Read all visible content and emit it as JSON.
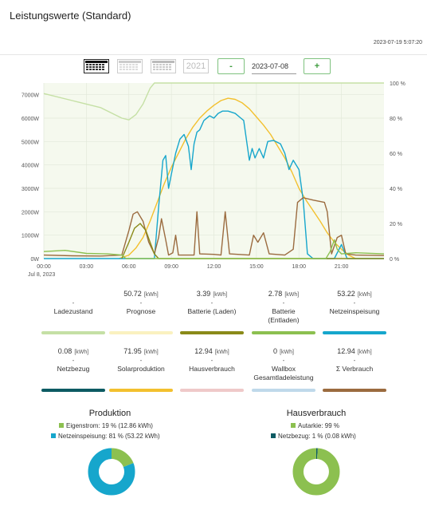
{
  "header": {
    "title": "Leistungswerte (Standard)",
    "timestamp": "2023-07-19 5:07:20"
  },
  "toolbar": {
    "year_label": "2021",
    "prev_label": "-",
    "next_label": "+",
    "date_value": "2023-07-08"
  },
  "colors": {
    "ladezustand": "#c5e0a5",
    "prognose": "#faf1c0",
    "batterie_laden": "#8a8a18",
    "batterie_entladen": "#8cc050",
    "netzeinspeisung": "#16a6cc",
    "netzbezug": "#0d5b63",
    "solarproduktion": "#f3c02e",
    "hausverbrauch": "#efc9c9",
    "wallbox": "#bfd9ea",
    "verbrauch": "#9b6b3f",
    "plot_bg": "#f5f9ee",
    "donut_light_green": "#8cc050",
    "donut_blue": "#16a6cc",
    "donut_teal": "#0d5b63"
  },
  "stats_row1": [
    {
      "key": "ladezustand",
      "value": "",
      "unit": "",
      "label": "Ladezustand",
      "label2": ""
    },
    {
      "key": "prognose",
      "value": "50.72",
      "unit": "[kWh]",
      "label": "Prognose",
      "label2": ""
    },
    {
      "key": "batterie_laden",
      "value": "3.39",
      "unit": "[kWh]",
      "label": "Batterie (Laden)",
      "label2": ""
    },
    {
      "key": "batterie_entladen",
      "value": "2.78",
      "unit": "[kWh]",
      "label": "Batterie",
      "label2": "(Entladen)"
    },
    {
      "key": "netzeinspeisung",
      "value": "53.22",
      "unit": "[kWh]",
      "label": "Netzeinspeisung",
      "label2": ""
    }
  ],
  "stats_row2": [
    {
      "key": "netzbezug",
      "value": "0.08",
      "unit": "[kWh]",
      "label": "Netzbezug",
      "label2": ""
    },
    {
      "key": "solarproduktion",
      "value": "71.95",
      "unit": "[kWh]",
      "label": "Solarproduktion",
      "label2": ""
    },
    {
      "key": "hausverbrauch",
      "value": "12.94",
      "unit": "[kWh]",
      "label": "Hausverbrauch",
      "label2": ""
    },
    {
      "key": "wallbox",
      "value": "0",
      "unit": "[kWh]",
      "label": "Wallbox",
      "label2": "Gesamtladeleistung"
    },
    {
      "key": "verbrauch",
      "value": "12.94",
      "unit": "[kWh]",
      "label": "Σ Verbrauch",
      "label2": ""
    }
  ],
  "stat_dash": "-",
  "donuts": {
    "produktion": {
      "title": "Produktion",
      "legend": [
        "Eigenstrom: 19 % (12.86 kWh)",
        "Netzeinspeisung: 81 % (53.22 kWh)"
      ],
      "fractions": [
        0.19,
        0.81
      ]
    },
    "hausverbrauch": {
      "title": "Hausverbrauch",
      "legend": [
        "Autarkie: 99 %",
        "Netzbezug: 1 % (0.08 kWh)"
      ],
      "fractions": [
        0.99,
        0.01
      ]
    }
  },
  "chart_data": {
    "type": "line",
    "x_ticks": [
      "00:00",
      "03:00",
      "06:00",
      "09:00",
      "12:00",
      "15:00",
      "18:00",
      "21:00"
    ],
    "x_date_label": "Jul 8, 2023",
    "xlim": [
      0,
      24
    ],
    "y_left_ticks": [
      "0W",
      "1000W",
      "2000W",
      "3000W",
      "4000W",
      "5000W",
      "6000W",
      "7000W"
    ],
    "ylim_left": [
      0,
      7500
    ],
    "y_right_ticks": [
      "0 %",
      "20 %",
      "40 %",
      "60 %",
      "80 %",
      "100 %"
    ],
    "ylim_right": [
      0,
      100
    ],
    "series": [
      {
        "key": "ladezustand",
        "axis": "right",
        "points": [
          [
            0,
            94
          ],
          [
            2,
            90
          ],
          [
            4,
            86
          ],
          [
            5.5,
            80
          ],
          [
            6,
            79
          ],
          [
            6.5,
            82
          ],
          [
            7,
            88
          ],
          [
            7.5,
            97
          ],
          [
            7.8,
            100
          ],
          [
            24,
            100
          ]
        ]
      },
      {
        "key": "solarproduktion",
        "axis": "left",
        "points": [
          [
            5.3,
            0
          ],
          [
            6,
            150
          ],
          [
            6.5,
            450
          ],
          [
            7,
            900
          ],
          [
            7.5,
            1600
          ],
          [
            8,
            2400
          ],
          [
            8.5,
            3200
          ],
          [
            9,
            3900
          ],
          [
            9.5,
            4500
          ],
          [
            10,
            5100
          ],
          [
            10.5,
            5600
          ],
          [
            11,
            6000
          ],
          [
            11.5,
            6300
          ],
          [
            12,
            6550
          ],
          [
            12.5,
            6750
          ],
          [
            13,
            6850
          ],
          [
            13.5,
            6800
          ],
          [
            14,
            6650
          ],
          [
            14.5,
            6400
          ],
          [
            15,
            6050
          ],
          [
            15.5,
            5700
          ],
          [
            16,
            5300
          ],
          [
            16.5,
            4800
          ],
          [
            17,
            4300
          ],
          [
            17.5,
            3700
          ],
          [
            18,
            3000
          ],
          [
            18.5,
            2500
          ],
          [
            19,
            2050
          ],
          [
            19.5,
            1600
          ],
          [
            20,
            1100
          ],
          [
            20.5,
            700
          ],
          [
            21,
            400
          ],
          [
            21.5,
            150
          ],
          [
            22,
            0
          ]
        ]
      },
      {
        "key": "netzeinspeisung",
        "axis": "left",
        "points": [
          [
            0,
            0
          ],
          [
            7.8,
            0
          ],
          [
            8.1,
            2200
          ],
          [
            8.4,
            4200
          ],
          [
            8.6,
            4400
          ],
          [
            8.8,
            3000
          ],
          [
            9,
            3600
          ],
          [
            9.3,
            4500
          ],
          [
            9.6,
            5100
          ],
          [
            9.9,
            5300
          ],
          [
            10.2,
            4800
          ],
          [
            10.4,
            3800
          ],
          [
            10.6,
            4900
          ],
          [
            10.8,
            5400
          ],
          [
            11,
            5500
          ],
          [
            11.3,
            5900
          ],
          [
            11.7,
            6100
          ],
          [
            12,
            6000
          ],
          [
            12.3,
            6200
          ],
          [
            12.6,
            6300
          ],
          [
            13,
            6300
          ],
          [
            13.5,
            6200
          ],
          [
            13.9,
            6000
          ],
          [
            14.1,
            5900
          ],
          [
            14.5,
            4200
          ],
          [
            14.7,
            4700
          ],
          [
            14.9,
            4300
          ],
          [
            15.2,
            4700
          ],
          [
            15.5,
            4300
          ],
          [
            15.8,
            5000
          ],
          [
            16.2,
            5050
          ],
          [
            16.7,
            4900
          ],
          [
            17,
            4500
          ],
          [
            17.3,
            3800
          ],
          [
            17.6,
            4200
          ],
          [
            18,
            3800
          ],
          [
            18.3,
            2500
          ],
          [
            18.6,
            200
          ],
          [
            19,
            0
          ],
          [
            20.5,
            0
          ],
          [
            21,
            600
          ],
          [
            21.4,
            0
          ],
          [
            24,
            0
          ]
        ]
      },
      {
        "key": "verbrauch",
        "axis": "left",
        "points": [
          [
            0,
            150
          ],
          [
            2,
            120
          ],
          [
            4,
            110
          ],
          [
            5.5,
            150
          ],
          [
            6,
            1200
          ],
          [
            6.3,
            1900
          ],
          [
            6.6,
            2000
          ],
          [
            7,
            1600
          ],
          [
            7.4,
            700
          ],
          [
            7.8,
            200
          ],
          [
            8.1,
            900
          ],
          [
            8.3,
            1700
          ],
          [
            8.6,
            800
          ],
          [
            8.8,
            150
          ],
          [
            9.1,
            250
          ],
          [
            9.3,
            1000
          ],
          [
            9.5,
            150
          ],
          [
            10.6,
            150
          ],
          [
            10.8,
            2000
          ],
          [
            11,
            200
          ],
          [
            12,
            180
          ],
          [
            12.5,
            150
          ],
          [
            12.8,
            2000
          ],
          [
            13.1,
            200
          ],
          [
            14.5,
            150
          ],
          [
            14.8,
            1000
          ],
          [
            15.1,
            700
          ],
          [
            15.5,
            1100
          ],
          [
            15.9,
            200
          ],
          [
            17,
            150
          ],
          [
            17.6,
            400
          ],
          [
            17.9,
            2400
          ],
          [
            18.3,
            2600
          ],
          [
            19,
            2500
          ],
          [
            19.8,
            2400
          ],
          [
            20,
            2000
          ],
          [
            20.3,
            200
          ],
          [
            20.7,
            900
          ],
          [
            21,
            1000
          ],
          [
            21.3,
            200
          ],
          [
            22,
            150
          ],
          [
            24,
            130
          ]
        ]
      },
      {
        "key": "batterie_laden",
        "axis": "left",
        "points": [
          [
            5.5,
            0
          ],
          [
            6,
            700
          ],
          [
            6.4,
            1300
          ],
          [
            6.8,
            1500
          ],
          [
            7.2,
            1200
          ],
          [
            7.5,
            700
          ],
          [
            7.8,
            200
          ],
          [
            8.1,
            0
          ],
          [
            24,
            0
          ]
        ]
      },
      {
        "key": "batterie_entladen",
        "axis": "left",
        "points": [
          [
            0,
            300
          ],
          [
            1.5,
            350
          ],
          [
            3,
            220
          ],
          [
            4.5,
            200
          ],
          [
            5.5,
            150
          ],
          [
            5.8,
            0
          ],
          [
            19.9,
            0
          ],
          [
            20.2,
            300
          ],
          [
            20.5,
            800
          ],
          [
            20.7,
            400
          ],
          [
            21,
            200
          ],
          [
            22,
            250
          ],
          [
            24,
            200
          ]
        ]
      }
    ]
  }
}
